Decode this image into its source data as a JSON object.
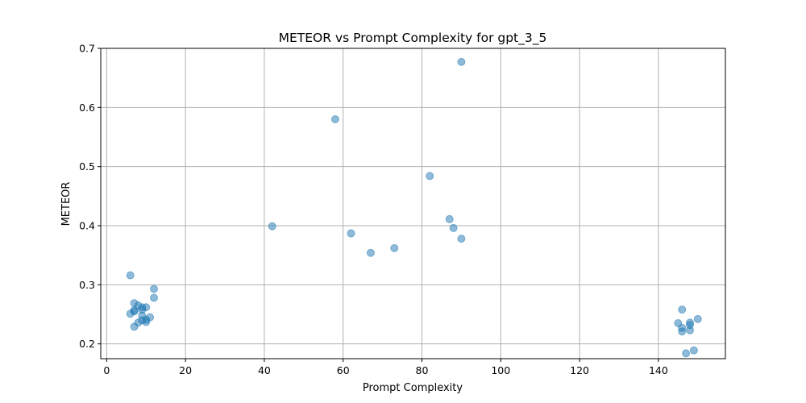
{
  "chart_data": {
    "type": "scatter",
    "title": "METEOR vs Prompt Complexity for gpt_3_5",
    "xlabel": "Prompt Complexity",
    "ylabel": "METEOR",
    "xlim": [
      -1.5,
      157
    ],
    "ylim": [
      0.175,
      0.7
    ],
    "xticks": [
      0,
      20,
      40,
      60,
      80,
      100,
      120,
      140
    ],
    "yticks": [
      0.2,
      0.3,
      0.4,
      0.5,
      0.6,
      0.7
    ],
    "xtick_labels": [
      "0",
      "20",
      "40",
      "60",
      "80",
      "100",
      "120",
      "140"
    ],
    "ytick_labels": [
      "0.2",
      "0.3",
      "0.4",
      "0.5",
      "0.6",
      "0.7"
    ],
    "grid": true,
    "marker_color": "#1f77b4",
    "marker_alpha": 0.5,
    "points": [
      {
        "x": 6,
        "y": 0.316
      },
      {
        "x": 6,
        "y": 0.251
      },
      {
        "x": 7,
        "y": 0.269
      },
      {
        "x": 7,
        "y": 0.257
      },
      {
        "x": 7,
        "y": 0.255
      },
      {
        "x": 7,
        "y": 0.229
      },
      {
        "x": 8,
        "y": 0.265
      },
      {
        "x": 8,
        "y": 0.236
      },
      {
        "x": 9,
        "y": 0.262
      },
      {
        "x": 9,
        "y": 0.258
      },
      {
        "x": 9,
        "y": 0.248
      },
      {
        "x": 9,
        "y": 0.24
      },
      {
        "x": 10,
        "y": 0.262
      },
      {
        "x": 10,
        "y": 0.241
      },
      {
        "x": 10,
        "y": 0.237
      },
      {
        "x": 11,
        "y": 0.245
      },
      {
        "x": 12,
        "y": 0.293
      },
      {
        "x": 12,
        "y": 0.278
      },
      {
        "x": 42,
        "y": 0.399
      },
      {
        "x": 58,
        "y": 0.58
      },
      {
        "x": 62,
        "y": 0.387
      },
      {
        "x": 67,
        "y": 0.354
      },
      {
        "x": 73,
        "y": 0.362
      },
      {
        "x": 82,
        "y": 0.484
      },
      {
        "x": 87,
        "y": 0.411
      },
      {
        "x": 88,
        "y": 0.396
      },
      {
        "x": 90,
        "y": 0.677
      },
      {
        "x": 90,
        "y": 0.378
      },
      {
        "x": 145,
        "y": 0.235
      },
      {
        "x": 146,
        "y": 0.258
      },
      {
        "x": 146,
        "y": 0.227
      },
      {
        "x": 146,
        "y": 0.221
      },
      {
        "x": 147,
        "y": 0.184
      },
      {
        "x": 148,
        "y": 0.236
      },
      {
        "x": 148,
        "y": 0.232
      },
      {
        "x": 148,
        "y": 0.223
      },
      {
        "x": 149,
        "y": 0.189
      },
      {
        "x": 150,
        "y": 0.242
      }
    ]
  }
}
